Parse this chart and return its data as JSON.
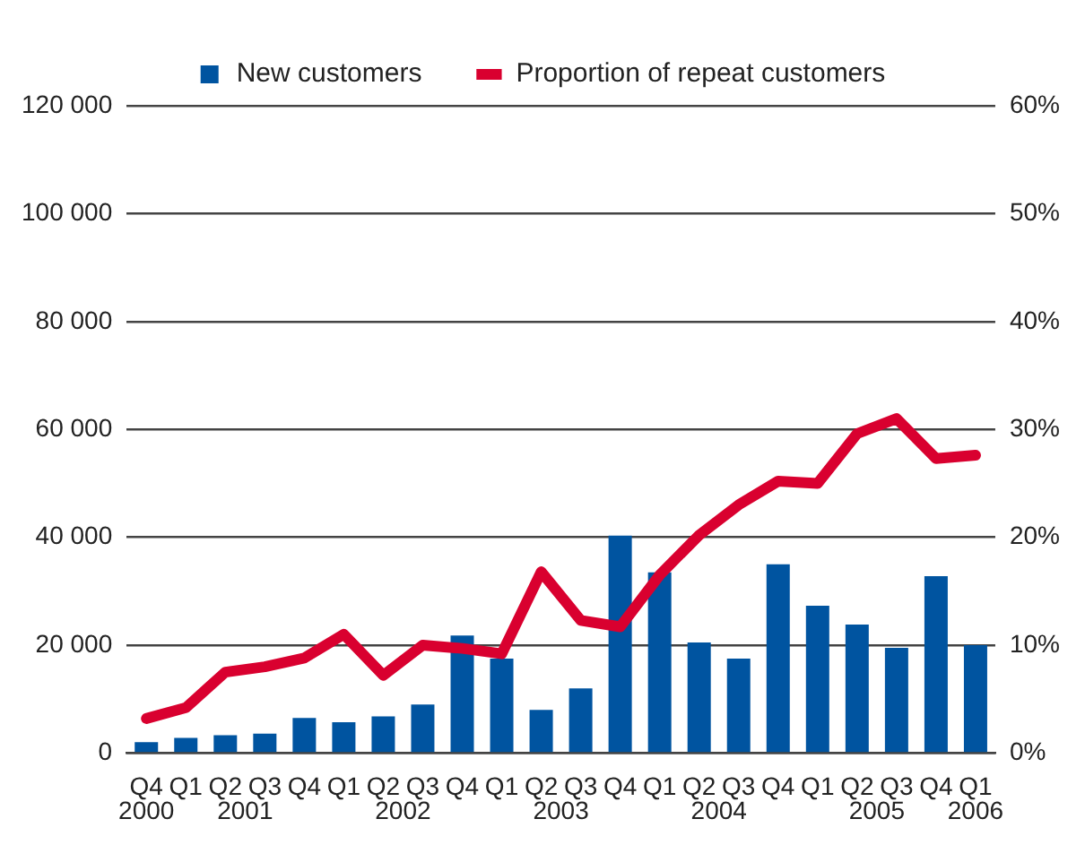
{
  "chart_data": {
    "type": "bar",
    "categories": [
      "Q4",
      "Q1",
      "Q2",
      "Q3",
      "Q4",
      "Q1",
      "Q2",
      "Q3",
      "Q4",
      "Q1",
      "Q2",
      "Q3",
      "Q4",
      "Q1",
      "Q2",
      "Q3",
      "Q4",
      "Q1",
      "Q2",
      "Q3",
      "Q4",
      "Q1"
    ],
    "series": [
      {
        "name": "New customers",
        "color": "#0054a0",
        "values": [
          2000,
          2800,
          3300,
          3600,
          6500,
          5700,
          6800,
          9000,
          21800,
          17500,
          8000,
          12000,
          40300,
          33500,
          20500,
          17500,
          35000,
          27300,
          23800,
          19500,
          32800,
          20000
        ]
      },
      {
        "name": "Proportion of repeat customers",
        "type": "line",
        "axis": "y2",
        "color": "#d9002f",
        "values": [
          3.2,
          4.2,
          7.5,
          8.0,
          8.8,
          11.0,
          7.2,
          10.0,
          9.7,
          9.2,
          16.8,
          12.3,
          11.7,
          16.5,
          20.2,
          23.0,
          25.2,
          25.0,
          29.6,
          31.0,
          27.3,
          27.6
        ]
      }
    ],
    "ylim": [
      0,
      120000
    ],
    "yticks": [
      0,
      {
        "value": 20000,
        "label": "20 000"
      },
      {
        "value": 40000,
        "label": "40 000"
      },
      {
        "value": 60000,
        "label": "60 000"
      },
      {
        "value": 80000,
        "label": "80 000"
      },
      {
        "value": 100000,
        "label": "100 000"
      },
      {
        "value": 120000,
        "label": "120 000"
      }
    ],
    "y2lim": [
      0,
      60
    ],
    "y2ticks": [
      {
        "value": 0,
        "label": "0%"
      },
      {
        "value": 10,
        "label": "10%"
      },
      {
        "value": 20,
        "label": "20%"
      },
      {
        "value": 30,
        "label": "30%"
      },
      {
        "value": 40,
        "label": "40%"
      },
      {
        "value": 50,
        "label": "50%"
      },
      {
        "value": 60,
        "label": "60%"
      }
    ],
    "annotations": [
      "2000",
      "2001",
      "2002",
      "2003",
      "2004",
      "2005",
      "2006"
    ],
    "grid": "y",
    "legend": "top",
    "marker": "none"
  }
}
